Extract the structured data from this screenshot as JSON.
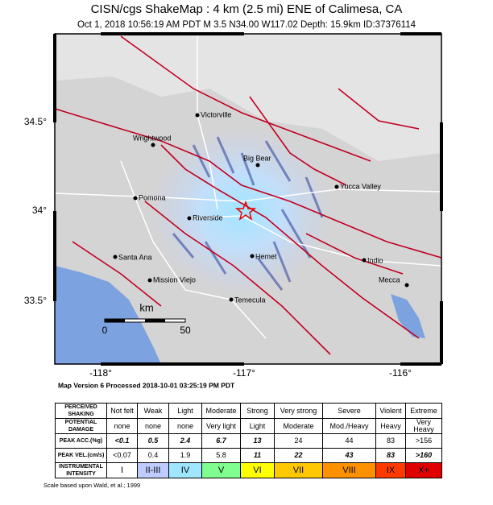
{
  "header": {
    "title": "CISN/cgs ShakeMap : 4 km (2.5 mi) ENE of Calimesa, CA",
    "subtitle": "Oct  1, 2018 10:56:19 AM PDT   M 3.5   N34.00 W117.02  Depth: 15.9km   ID:37376114"
  },
  "map": {
    "lat_labels": [
      "34.5°",
      "34°",
      "33.5°"
    ],
    "lon_labels": [
      "-118°",
      "-117°",
      "-116°"
    ],
    "cities": [
      "Victorville",
      "Wrightwood",
      "Big Bear",
      "Yucca Valley",
      "Pomona",
      "Riverside",
      "Santa Ana",
      "Hemet",
      "Indio",
      "Mission Viejo",
      "Mecca",
      "Temecula"
    ],
    "scale": {
      "unit": "km",
      "start": "0",
      "end": "50"
    }
  },
  "processed": "Map Version 6 Processed 2018-10-01 03:25:19 PM PDT",
  "table": {
    "rows": [
      [
        "PERCEIVED SHAKING",
        "Not felt",
        "Weak",
        "Light",
        "Moderate",
        "Strong",
        "Very strong",
        "Severe",
        "Violent",
        "Extreme"
      ],
      [
        "POTENTIAL DAMAGE",
        "none",
        "none",
        "none",
        "Very light",
        "Light",
        "Moderate",
        "Mod./Heavy",
        "Heavy",
        "Very Heavy"
      ],
      [
        "PEAK ACC.(%g)",
        "<0.1",
        "0.5",
        "2.4",
        "6.7",
        "13",
        "24",
        "44",
        "83",
        ">156"
      ],
      [
        "PEAK VEL.(cm/s)",
        "<0.07",
        "0.4",
        "1.9",
        "5.8",
        "11",
        "22",
        "43",
        "83",
        ">160"
      ],
      [
        "INSTRUMENTAL INTENSITY",
        "I",
        "II-III",
        "IV",
        "V",
        "VI",
        "VII",
        "VIII",
        "IX",
        "X+"
      ]
    ]
  },
  "note": "Scale based upon Wald, et al.; 1999"
}
